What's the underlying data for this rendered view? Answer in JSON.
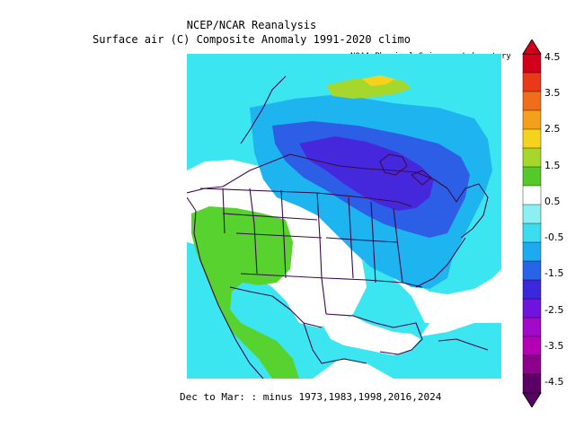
{
  "title_line1": "NCEP/NCAR Reanalysis",
  "title_line2": "Surface air (C) Composite Anomaly 1991-2020 climo",
  "credit": "NOAA Physical Sciences Laboratory",
  "footer": "Dec to Mar: :  minus 1973,1983,1998,2016,2024",
  "colorbar": {
    "labels": [
      "4.5",
      "3.5",
      "2.5",
      "1.5",
      "0.5",
      "-0.5",
      "-1.5",
      "-2.5",
      "-3.5",
      "-4.5"
    ],
    "colors": [
      "#d2001a",
      "#e83a18",
      "#f06e1a",
      "#f5a01c",
      "#f5d21e",
      "#a5d72c",
      "#55c82a",
      "#ffffff",
      "#8cf0f0",
      "#3cdcf0",
      "#1eaaf0",
      "#2864e6",
      "#3c28dc",
      "#6e14dc",
      "#a00ac8",
      "#b400b4",
      "#8c008c",
      "#5a0064"
    ]
  },
  "map": {
    "region": "North America",
    "anomaly_range": [
      -3,
      1.5
    ],
    "colors": {
      "cool_light": "#3ce6f0",
      "cool_mid": "#1eb4f0",
      "cool_dark": "#2c5ee6",
      "cool_darkest": "#4628dc",
      "warm": "#58d22e",
      "warm_light": "#a5d72c",
      "warm_high": "#f5d21e",
      "neutral": "#ffffff",
      "boundaries": "#3a0a4a"
    }
  }
}
